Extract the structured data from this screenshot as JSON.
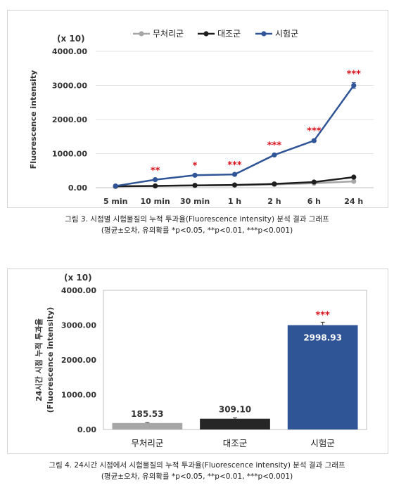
{
  "figure1": {
    "scale_label": "(x 10)",
    "caption_line1": "그림 3. 시점별 시험물질의 누적 투과율(Fluorescence intensity) 분석 결과 그래프",
    "caption_line2": "(평균±오차, 유의확률 *p<0.05, **p<0.01, ***p<0.001)"
  },
  "figure2": {
    "scale_label": "(x 10)",
    "caption_line1": "그림 4. 24시간 시점에서 시험물질의 누적 투과율(Fluorescence intensity) 분석 결과 그래프",
    "caption_line2": "(평균±오차, 유의확률 *p<0.05, **p<0.01, ***p<0.001)"
  },
  "chart_data": [
    {
      "type": "line",
      "title": "",
      "xlabel": "",
      "ylabel": "Fluorescence intensity",
      "ylim": [
        0,
        4000
      ],
      "yticks": [
        "0.00",
        "1000.00",
        "2000.00",
        "3000.00",
        "4000.00"
      ],
      "categories": [
        "5 min",
        "10 min",
        "30 min",
        "1 h",
        "2 h",
        "6 h",
        "24 h"
      ],
      "legend_position": "top-center",
      "grid": true,
      "series": [
        {
          "name": "무처리군",
          "color": "#a6a6a6",
          "values": [
            40,
            50,
            65,
            75,
            95,
            130,
            186
          ],
          "errors": [
            5,
            5,
            5,
            5,
            5,
            10,
            15
          ]
        },
        {
          "name": "대조군",
          "color": "#1e1e1e",
          "values": [
            40,
            52,
            68,
            80,
            110,
            165,
            309
          ],
          "errors": [
            5,
            5,
            5,
            5,
            8,
            15,
            25
          ]
        },
        {
          "name": "시험군",
          "color": "#2f5597",
          "values": [
            50,
            235,
            365,
            390,
            960,
            1380,
            2999
          ],
          "errors": [
            10,
            15,
            30,
            20,
            25,
            30,
            85
          ]
        }
      ],
      "annotations": [
        "",
        "**",
        "*",
        "***",
        "***",
        "***",
        "***"
      ]
    },
    {
      "type": "bar",
      "title": "",
      "xlabel": "",
      "ylabel": "24시간 시점 누적 투과율 (Fluorescence intensity)",
      "ylim": [
        0,
        4000
      ],
      "yticks": [
        "0.00",
        "1000.00",
        "2000.00",
        "3000.00",
        "4000.00"
      ],
      "categories": [
        "무처리군",
        "대조군",
        "시험군"
      ],
      "values": [
        185.53,
        309.1,
        2998.93
      ],
      "value_labels": [
        "185.53",
        "309.10",
        "2998.93"
      ],
      "errors": [
        15,
        25,
        85
      ],
      "colors": [
        "#a6a6a6",
        "#262626",
        "#2f5597"
      ],
      "annotations": [
        "",
        "",
        "***"
      ]
    }
  ]
}
